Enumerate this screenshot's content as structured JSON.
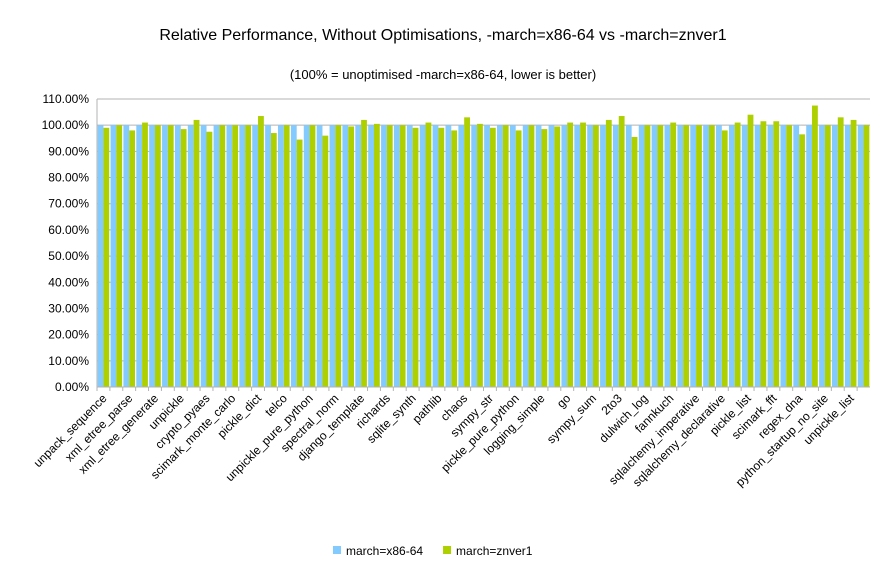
{
  "chart_data": {
    "type": "bar",
    "title": "Relative Performance, Without Optimisations, -march=x86-64 vs -march=znver1",
    "subtitle": "(100% = unoptimised -march=x86-64, lower is better)",
    "categories": [
      "unpack_sequence",
      null,
      "xml_etree_parse",
      null,
      "xml_etree_generate",
      null,
      "unpickle",
      null,
      "crypto_pyaes",
      null,
      "scimark_monte_carlo",
      null,
      "pickle_dict",
      null,
      "telco",
      null,
      "unpickle_pure_python",
      null,
      "spectral_norm",
      null,
      "django_template",
      null,
      "richards",
      null,
      "sqlite_synth",
      null,
      "pathlib",
      null,
      "chaos",
      null,
      "sympy_str",
      null,
      "pickle_pure_python",
      null,
      "logging_simple",
      null,
      "go",
      null,
      "sympy_sum",
      null,
      "2to3",
      null,
      "dulwich_log",
      null,
      "fannkuch",
      null,
      "sqlalchemy_imperative",
      null,
      "sqlalchemy_declarative",
      null,
      "pickle_list",
      null,
      "scimark_fft",
      null,
      "regex_dna",
      null,
      "python_startup_no_site",
      null,
      "unpickle_list",
      null
    ],
    "series": [
      {
        "name": "march=x86-64",
        "color": "#83caff",
        "values": [
          100,
          100,
          100,
          100,
          100,
          100,
          100,
          100,
          100,
          100,
          100,
          100,
          100,
          100,
          100,
          100,
          100,
          100,
          100,
          100,
          100,
          100,
          100,
          100,
          100,
          100,
          100,
          100,
          100,
          100,
          100,
          100,
          100,
          100,
          100,
          100,
          100,
          100,
          100,
          100,
          100,
          100,
          100,
          100,
          100,
          100,
          100,
          100,
          100,
          100,
          100,
          100,
          100,
          100,
          100,
          100,
          100,
          100,
          100,
          100
        ]
      },
      {
        "name": "march=znver1",
        "color": "#aecf00",
        "values": [
          99,
          100,
          98,
          101,
          100,
          100,
          98.5,
          102,
          97.5,
          100,
          100,
          100,
          103.5,
          97,
          100,
          94.5,
          100,
          96,
          100,
          99.5,
          102,
          100.5,
          100,
          100,
          99,
          101,
          99,
          98,
          103,
          100.5,
          99,
          100,
          98,
          100,
          98.5,
          99.5,
          101,
          101,
          100,
          102,
          103.5,
          95.5,
          100,
          100,
          101,
          100,
          100,
          100,
          98,
          101,
          104,
          101.5,
          101.5,
          100,
          96.5,
          107.5,
          100,
          103,
          102,
          100
        ]
      }
    ],
    "ylim": [
      0,
      110
    ],
    "yticks": [
      {
        "value": 0,
        "label": "0.00%"
      },
      {
        "value": 10,
        "label": "10.00%"
      },
      {
        "value": 20,
        "label": "20.00%"
      },
      {
        "value": 30,
        "label": "30.00%"
      },
      {
        "value": 40,
        "label": "40.00%"
      },
      {
        "value": 50,
        "label": "50.00%"
      },
      {
        "value": 60,
        "label": "60.00%"
      },
      {
        "value": 70,
        "label": "70.00%"
      },
      {
        "value": 80,
        "label": "80.00%"
      },
      {
        "value": 90,
        "label": "90.00%"
      },
      {
        "value": 100,
        "label": "100.00%"
      },
      {
        "value": 110,
        "label": "110.00%"
      }
    ],
    "grid": true,
    "legend": "bottom"
  }
}
